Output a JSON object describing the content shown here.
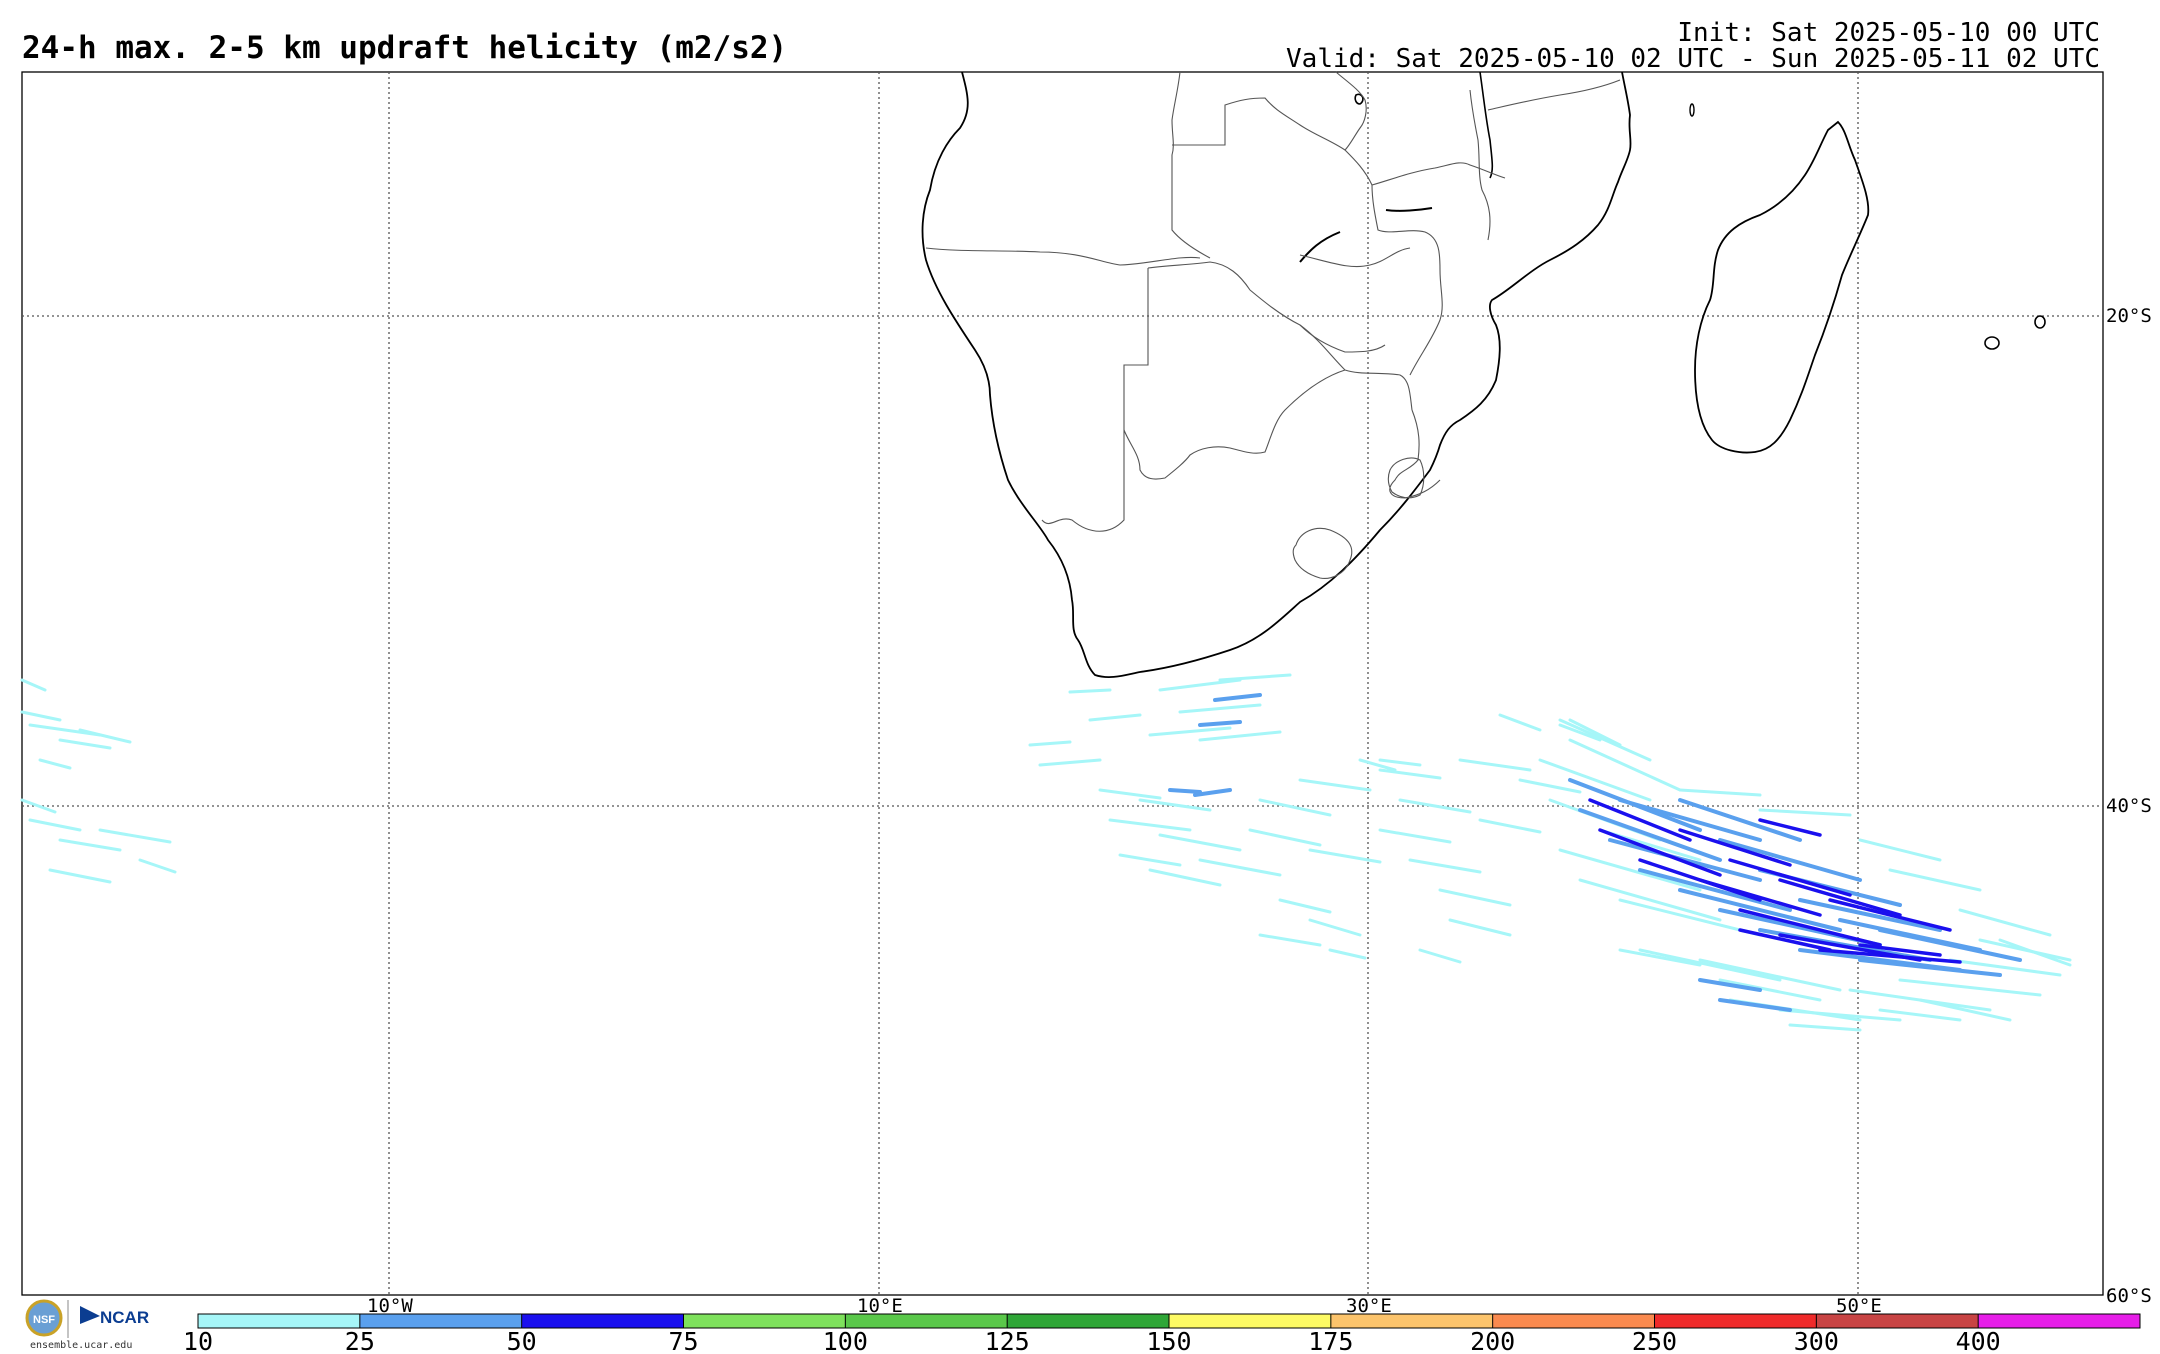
{
  "title": "24-h max. 2-5 km updraft helicity (m2/s2)",
  "init_line": "Init: Sat 2025-05-10 00 UTC",
  "valid_line": "Valid: Sat 2025-05-10 02 UTC - Sun 2025-05-11 02 UTC",
  "map": {
    "lat_labels": [
      "20°S",
      "40°S",
      "60°S"
    ],
    "lon_labels": [
      "10°W",
      "10°E",
      "30°E",
      "50°E"
    ],
    "gridlines": "dotted",
    "region": "Southern Africa, Madagascar and South Atlantic / Southern Indian Ocean"
  },
  "colorbar": {
    "ticks": [
      "10",
      "25",
      "50",
      "75",
      "100",
      "125",
      "150",
      "175",
      "200",
      "250",
      "300",
      "400"
    ],
    "colors": [
      "#a6f6f8",
      "#5aa0ee",
      "#1a10ee",
      "#7ee15c",
      "#5ac84a",
      "#2fa637",
      "#fdfa64",
      "#fcc46c",
      "#fa8a4f",
      "#ef2a2a",
      "#c84444",
      "#e61ee8"
    ]
  },
  "logos": {
    "nsf": "NSF",
    "ncar": "NCAR",
    "url": "ensemble.ucar.edu"
  }
}
